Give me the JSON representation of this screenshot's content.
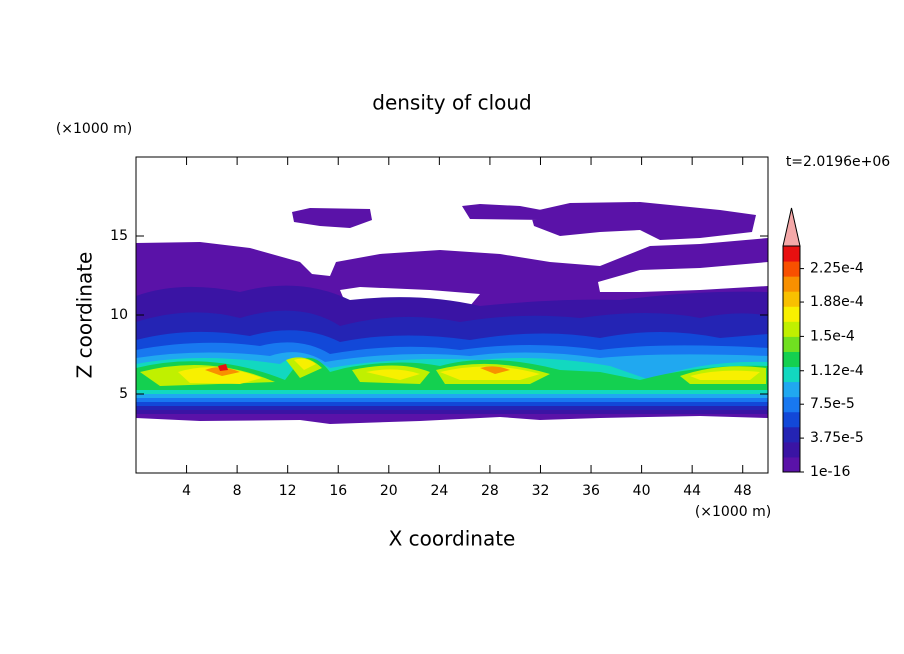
{
  "chart_data": {
    "type": "contour",
    "title": "density of cloud",
    "x_label": "X coordinate",
    "y_label": "Z coordinate",
    "x_unit": "(×1000 m)",
    "y_unit": "(×1000 m)",
    "annotation": "t=2.0196e+06",
    "xlim": [
      0,
      50
    ],
    "ylim": [
      0,
      20
    ],
    "xticks": [
      4,
      8,
      12,
      16,
      20,
      24,
      28,
      32,
      36,
      40,
      44,
      48
    ],
    "yticks": [
      5,
      10,
      15
    ],
    "colorbar": {
      "clim": [
        0,
        0.00025
      ],
      "ticks": [
        {
          "value": 1e-16,
          "label": "1e-16"
        },
        {
          "value": 3.75e-05,
          "label": "3.75e-5"
        },
        {
          "value": 7.5e-05,
          "label": "7.5e-5"
        },
        {
          "value": 0.000112,
          "label": "1.12e-4"
        },
        {
          "value": 0.00015,
          "label": "1.5e-4"
        },
        {
          "value": 0.000188,
          "label": "1.88e-4"
        },
        {
          "value": 0.000225,
          "label": "2.25e-4"
        }
      ],
      "colors": [
        "#5a12a8",
        "#3a14a4",
        "#2424b4",
        "#1248d8",
        "#1878f0",
        "#20a8f0",
        "#12d8c0",
        "#14d050",
        "#70e020",
        "#c0f000",
        "#f8f000",
        "#f8c000",
        "#f89000",
        "#f85000",
        "#e81010"
      ],
      "extend_color": "#f4a8a8"
    }
  }
}
